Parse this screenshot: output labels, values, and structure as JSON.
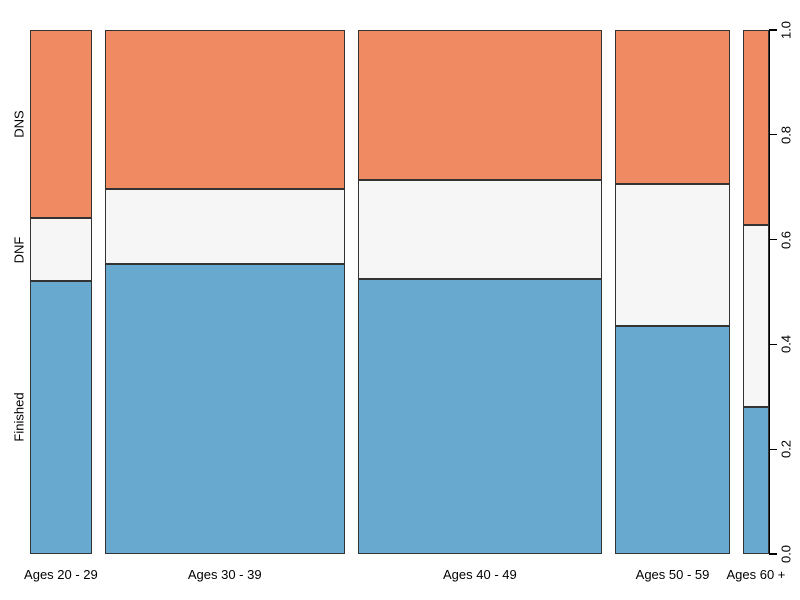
{
  "chart_data": {
    "type": "mosaic",
    "title": "",
    "x_axis": {
      "label": "",
      "categories": [
        "Ages 20 - 29",
        "Ages 30 - 39",
        "Ages 40 - 49",
        "Ages 50 - 59",
        "Ages 60 +"
      ]
    },
    "y_axis": {
      "label": "",
      "categories": [
        "Finished",
        "DNF",
        "DNS"
      ]
    },
    "right_axis": {
      "range": [
        0,
        1
      ],
      "tick_values": [
        0,
        0.2,
        0.4,
        0.6,
        0.8,
        1.0
      ],
      "tick_labels": [
        "0.0",
        "0.2",
        "0.4",
        "0.6",
        "0.8",
        "1.0"
      ]
    },
    "columns": [
      {
        "category": "Ages 20 - 29",
        "width_fraction": 0.09,
        "segments": {
          "Finished": 0.521,
          "DNF": 0.12,
          "DNS": 0.359
        }
      },
      {
        "category": "Ages 30 - 39",
        "width_fraction": 0.349,
        "segments": {
          "Finished": 0.553,
          "DNF": 0.144,
          "DNS": 0.303
        }
      },
      {
        "category": "Ages 40 - 49",
        "width_fraction": 0.356,
        "segments": {
          "Finished": 0.525,
          "DNF": 0.189,
          "DNS": 0.286
        }
      },
      {
        "category": "Ages 50 - 59",
        "width_fraction": 0.167,
        "segments": {
          "Finished": 0.435,
          "DNF": 0.271,
          "DNS": 0.294
        }
      },
      {
        "category": "Ages 60 +",
        "width_fraction": 0.038,
        "segments": {
          "Finished": 0.281,
          "DNF": 0.347,
          "DNS": 0.372
        }
      }
    ],
    "colors": {
      "Finished": "#67A9CF",
      "DNF": "#F6F6F6",
      "DNS": "#EF8A62",
      "border": "#333333",
      "text": "#000000"
    },
    "legend": "none",
    "grid": false
  }
}
